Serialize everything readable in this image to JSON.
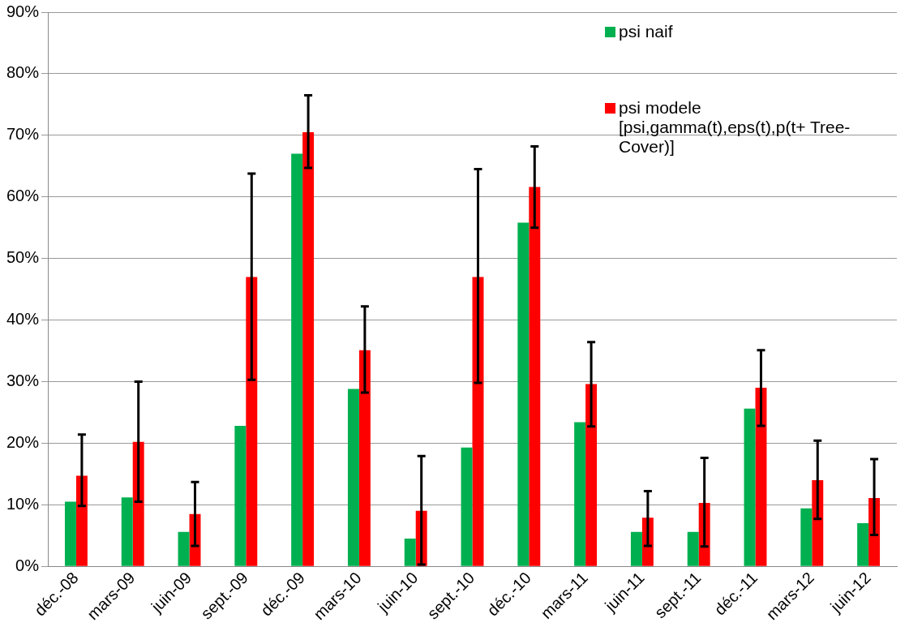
{
  "chart_data": {
    "type": "bar",
    "categories": [
      "déc.-08",
      "mars-09",
      "juin-09",
      "sept.-09",
      "déc.-09",
      "mars-10",
      "juin-10",
      "sept.-10",
      "déc.-10",
      "mars-11",
      "juin-11",
      "sept.-11",
      "déc.-11",
      "mars-12",
      "juin-12"
    ],
    "series": [
      {
        "name": "psi naif",
        "color": "#00b050",
        "values": [
          10.5,
          11.2,
          5.6,
          22.8,
          67,
          28.8,
          4.5,
          19.3,
          55.8,
          23.4,
          5.6,
          5.6,
          25.6,
          9.4,
          7.0
        ]
      },
      {
        "name": "psi modele [psi,gamma(t),eps(t),p(t+ Tree-Cover)]",
        "color": "#ff0000",
        "values": [
          14.7,
          20.2,
          8.5,
          47,
          70.5,
          35.1,
          9.0,
          47,
          61.6,
          29.6,
          7.9,
          10.3,
          29,
          14,
          11.1
        ],
        "errors": [
          [
            9.8,
            21.4
          ],
          [
            10.5,
            30
          ],
          [
            3.3,
            13.7
          ],
          [
            30.3,
            63.8
          ],
          [
            64.7,
            76.5
          ],
          [
            28.2,
            42.2
          ],
          [
            0.3,
            17.9
          ],
          [
            29.8,
            64.5
          ],
          [
            55,
            68.2
          ],
          [
            22.7,
            36.4
          ],
          [
            3.3,
            12.2
          ],
          [
            3.2,
            17.6
          ],
          [
            22.8,
            35.1
          ],
          [
            7.7,
            20.4
          ],
          [
            5.1,
            17.4
          ]
        ]
      }
    ],
    "ylim": [
      0,
      90
    ],
    "yticks": [
      {
        "value": 0,
        "label": "0%"
      },
      {
        "value": 10,
        "label": "10%"
      },
      {
        "value": 20,
        "label": "20%"
      },
      {
        "value": 30,
        "label": "30%"
      },
      {
        "value": 40,
        "label": "40%"
      },
      {
        "value": 50,
        "label": "50%"
      },
      {
        "value": 60,
        "label": "60%"
      },
      {
        "value": 70,
        "label": "70%"
      },
      {
        "value": 80,
        "label": "80%"
      },
      {
        "value": 90,
        "label": "90%"
      }
    ],
    "grid": "y",
    "legend": "top right"
  }
}
